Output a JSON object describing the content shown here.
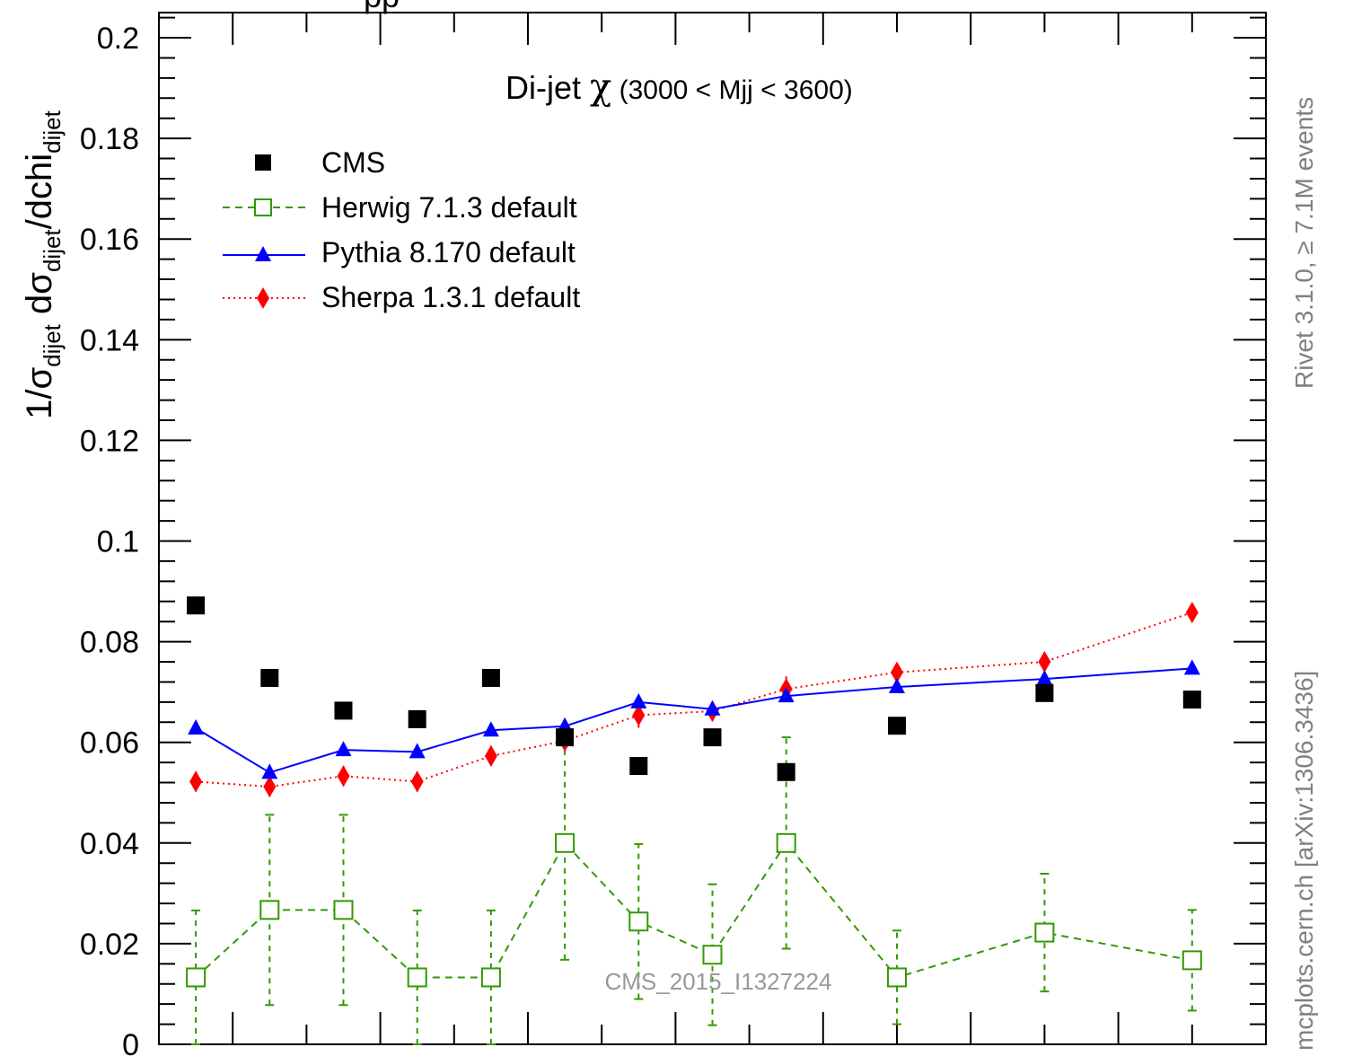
{
  "chart_data": {
    "type": "scatter",
    "title": "Di-jet χ (3000 < Mjj < 3600)",
    "title_main": "Di-jet ",
    "title_chi": "χ",
    "title_range": " (3000 < Mjj < 3600)",
    "top_label_fragment": "pp",
    "ylabel": {
      "p1": "1/σ",
      "s1": "dijet",
      "p2": " dσ",
      "s2": "dijet",
      "p3": "/dchi",
      "s3": "dijet"
    },
    "ylim": [
      0,
      0.205
    ],
    "xlim": [
      1,
      16
    ],
    "y_ticks": [
      "0",
      "0.02",
      "0.04",
      "0.06",
      "0.08",
      "0.1",
      "0.12",
      "0.14",
      "0.16",
      "0.18",
      "0.2"
    ],
    "y_tick_values": [
      0,
      0.02,
      0.04,
      0.06,
      0.08,
      0.1,
      0.12,
      0.14,
      0.16,
      0.18,
      0.2
    ],
    "grid": false,
    "legend_position": "top-left",
    "x": [
      1.5,
      2.5,
      3.5,
      4.5,
      5.5,
      6.5,
      7.5,
      8.5,
      9.5,
      11,
      13,
      15
    ],
    "series": [
      {
        "name": "CMS",
        "marker": "filled-square",
        "color": "#000000",
        "values": [
          0.0872,
          0.0728,
          0.0663,
          0.0646,
          0.0728,
          0.061,
          0.0553,
          0.061,
          0.0541,
          0.0633,
          0.0698,
          0.0685
        ]
      },
      {
        "name": "Herwig 7.1.3 default",
        "marker": "open-square",
        "line": "dashed",
        "color": "#339900",
        "values": [
          0.0133,
          0.0267,
          0.0267,
          0.0133,
          0.0133,
          0.04,
          0.0244,
          0.0178,
          0.04,
          0.0133,
          0.0222,
          0.0167
        ],
        "errors": [
          0.0133,
          0.0189,
          0.0189,
          0.0133,
          0.0133,
          0.0232,
          0.0154,
          0.014,
          0.021,
          0.0093,
          0.0117,
          0.01
        ]
      },
      {
        "name": "Pythia 8.170 default",
        "marker": "filled-triangle",
        "line": "solid",
        "color": "#0000ff",
        "values": [
          0.0628,
          0.054,
          0.0585,
          0.0581,
          0.0624,
          0.0632,
          0.068,
          0.0666,
          0.0692,
          0.071,
          0.0726,
          0.0747
        ]
      },
      {
        "name": "Sherpa 1.3.1 default",
        "marker": "filled-diamond",
        "line": "dotted",
        "color": "#ff0000",
        "values": [
          0.0522,
          0.0512,
          0.0533,
          0.0522,
          0.0573,
          0.0603,
          0.0654,
          0.0662,
          0.0706,
          0.0739,
          0.076,
          0.0858
        ],
        "errors": [
          0.002,
          0.002,
          0.002,
          0.002,
          0.002,
          0.002,
          0.0025,
          0.002,
          0.0025,
          0.0015,
          0.0015,
          0.0015
        ]
      }
    ],
    "annotations": {
      "analysis_id": "CMS_2015_I1327224",
      "right_top": "Rivet 3.1.0, ≥ 7.1M events",
      "right_bottom": "mcplots.cern.ch [arXiv:1306.3436]"
    }
  }
}
